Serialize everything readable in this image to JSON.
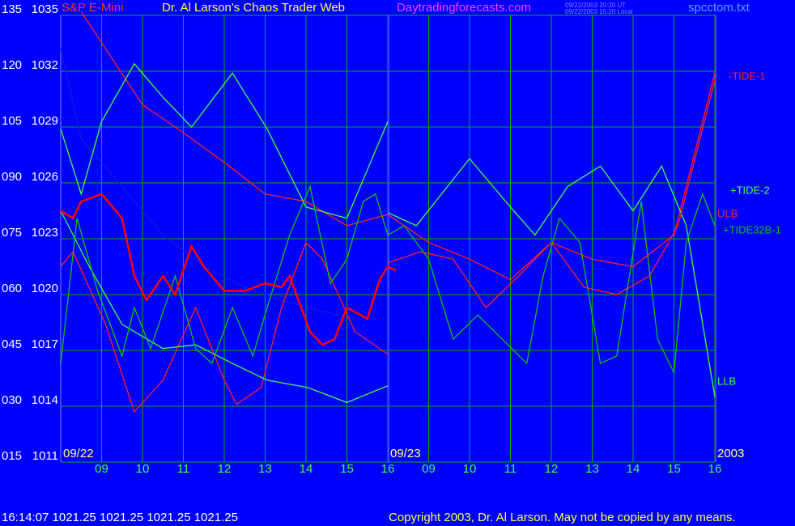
{
  "chart_data": {
    "type": "line",
    "title": "S&P E-Mini",
    "subtitle": "Dr. Al Larson's Chaos Trader Web",
    "website": "Daytradingforecasts.com",
    "timestamp_ut": "09/22/2003 20:20 UT",
    "timestamp_local": "09/22/2003 15:20 Local",
    "filename": "spcctom.txt",
    "date_labels": [
      {
        "x": 8,
        "label": "09/22"
      },
      {
        "x": 16,
        "label": "09/23"
      },
      {
        "x": 24,
        "label": "2003"
      }
    ],
    "status_line": "16:14:07 1021.25 1021.25 1021.25 1021.25",
    "copyright": "Copyright 2003, Dr. Al Larson. May not be copied by any means.",
    "xlim": [
      8,
      24
    ],
    "xticks": [
      {
        "value": 9,
        "label": "09"
      },
      10,
      11,
      12,
      13,
      14,
      15,
      16,
      {
        "value": 17,
        "label": "09"
      },
      {
        "value": 18,
        "label": "10"
      },
      {
        "value": 19,
        "label": "11"
      },
      {
        "value": 20,
        "label": "12"
      },
      {
        "value": 21,
        "label": "13"
      },
      {
        "value": 22,
        "label": "14"
      },
      {
        "value": 23,
        "label": "15"
      },
      {
        "value": 24,
        "label": "16"
      }
    ],
    "ylim": [
      1011,
      1035
    ],
    "yticks": [
      1011,
      1014,
      1017,
      1020,
      1023,
      1026,
      1029,
      1032,
      1035
    ],
    "y2lim": [
      15,
      135
    ],
    "y2ticks": [
      {
        "value": 15,
        "label": "015"
      },
      {
        "value": 30,
        "label": "030"
      },
      {
        "value": 45,
        "label": "045"
      },
      {
        "value": 60,
        "label": "060"
      },
      {
        "value": 75,
        "label": "075"
      },
      {
        "value": 90,
        "label": "090"
      },
      105,
      120,
      135
    ],
    "grid": true,
    "series": [
      {
        "color": "#1818d0",
        "x": [
          8,
          8.5,
          9.5,
          10.5,
          11.5,
          12.5,
          13.4,
          14.4,
          15.2
        ],
        "values": [
          1033.2,
          1028.4,
          1025.8,
          1023.2,
          1021.5,
          1020.4,
          1019.7,
          1019.1,
          1018.7
        ]
      },
      {
        "name": "-TIDE-1",
        "color": "#ff2020",
        "x": [
          8.5,
          10,
          11,
          12,
          13,
          14,
          15,
          16,
          17,
          18,
          19,
          20,
          21,
          22,
          23,
          24
        ],
        "values": [
          1035.2,
          1030.2,
          1028.7,
          1027.1,
          1025.4,
          1025,
          1023.7,
          1024.3,
          1022.8,
          1021.9,
          1020.8,
          1022.8,
          1021.9,
          1021.5,
          1023.2,
          1031.9
        ]
      },
      {
        "name": "+TIDE-2",
        "color": "#40ff40",
        "x": [
          8,
          8.5,
          9,
          9.8,
          10.5,
          11.2,
          12.2,
          13.05,
          14,
          15,
          16,
          16,
          16,
          16.7,
          18,
          19,
          19.6,
          20.4,
          21.2,
          22,
          22.7,
          23.3,
          24
        ],
        "values": [
          1028.9,
          1025.4,
          1029.3,
          1032.4,
          1030.6,
          1029,
          1031.9,
          1028.9,
          1024.7,
          1024.1,
          1029.3,
          null,
          1024.4,
          1023.7,
          1027.3,
          1024.7,
          1023.2,
          1025.8,
          1026.9,
          1024.5,
          1026.9,
          1023.7,
          1014.5
        ]
      },
      {
        "name": "ULB",
        "color": "#ff2020",
        "x": [
          8,
          8.3,
          9.1,
          9.8,
          10.5,
          11.3,
          12,
          12.3,
          12.9,
          13.4,
          14,
          14.4,
          15.2,
          16,
          16,
          16,
          16.8,
          17.6,
          18.4,
          19.2,
          20,
          20.8,
          21.6,
          22.4,
          23.1,
          24
        ],
        "values": [
          1021.5,
          1022.3,
          1018.4,
          1013.7,
          1015.4,
          1019.3,
          1015.4,
          1014.1,
          1015,
          1019.3,
          1022.8,
          1021.9,
          1018,
          1016.8,
          null,
          1021.7,
          1022.3,
          1021.9,
          1019.3,
          1021,
          1022.8,
          1020.4,
          1020,
          1021,
          1023.7,
          1031.5
        ]
      },
      {
        "name": "LLB",
        "color": "#40ff40",
        "x": [
          8,
          8.7,
          9.5,
          10.5,
          11.3,
          12.2,
          13.05,
          14.05,
          15,
          16
        ],
        "values": [
          1024.5,
          1021.5,
          1018.4,
          1017.1,
          1017.3,
          1016.3,
          1015.4,
          1015,
          1014.2,
          1015.1
        ]
      },
      {
        "name": "+TIDE32B-1",
        "color": "#10c010",
        "x": [
          8,
          8.4,
          8.9,
          9.5,
          9.8,
          10.2,
          10.8,
          11.3,
          11.7,
          12.2,
          12.7,
          13.05,
          13.6,
          14.1,
          14.6,
          15,
          15.4,
          15.7,
          16,
          16.4,
          17,
          17.6,
          18.2,
          18.8,
          19.4,
          19.8,
          20.2,
          20.7,
          21.2,
          21.6,
          22.2,
          22.6,
          23,
          23.3,
          23.7,
          24
        ],
        "values": [
          1016.3,
          1024.1,
          1020.2,
          1016.7,
          1019.3,
          1017.1,
          1021,
          1017.1,
          1016.3,
          1019.3,
          1016.7,
          1019.3,
          1023.2,
          1025.8,
          1020.6,
          1021.9,
          1025,
          1025.4,
          1023.2,
          1023.7,
          1021.9,
          1017.6,
          1018.9,
          1017.6,
          1016.3,
          1021,
          1024.1,
          1022.8,
          1016.3,
          1016.7,
          1025,
          1017.6,
          1015.8,
          1022.8,
          1025.4,
          1023.7
        ]
      },
      {
        "color": "#ff0000",
        "x": [
          8,
          8.3,
          8.5,
          9,
          9.5,
          9.8,
          10.1,
          10.5,
          10.8,
          11.2,
          11.5,
          12,
          12.5,
          13,
          13.4,
          13.6,
          14.1,
          14.4,
          14.7,
          15,
          15.5,
          15.8,
          16,
          16.2
        ],
        "values": [
          1024.5,
          1024.1,
          1025,
          1025.4,
          1024.1,
          1021,
          1019.7,
          1021,
          1020,
          1022.6,
          1021.5,
          1020.2,
          1020.2,
          1020.6,
          1020.4,
          1021,
          1018,
          1017.3,
          1017.6,
          1019.3,
          1018.7,
          1020.8,
          1021.5,
          1021.3
        ]
      }
    ]
  }
}
